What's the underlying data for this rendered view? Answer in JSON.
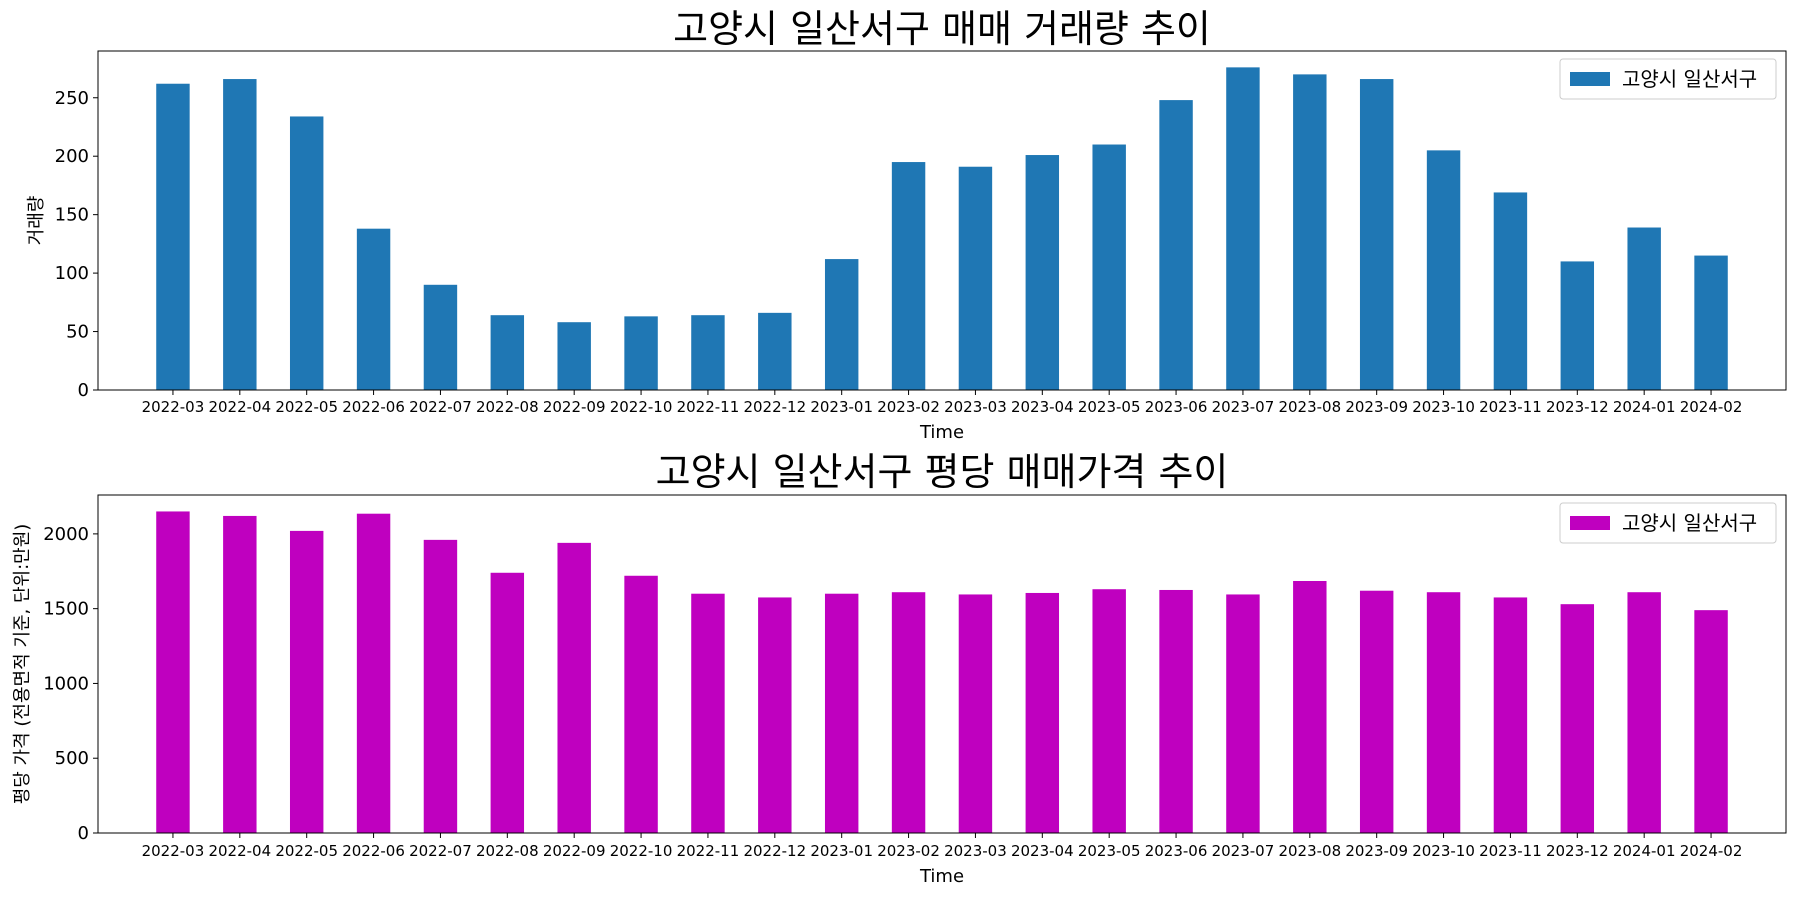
{
  "chart_data": [
    {
      "type": "bar",
      "title": "고양시 일산서구 매매 거래량 추이",
      "xlabel": "Time",
      "ylabel": "거래량",
      "categories": [
        "2022-03",
        "2022-04",
        "2022-05",
        "2022-06",
        "2022-07",
        "2022-08",
        "2022-09",
        "2022-10",
        "2022-11",
        "2022-12",
        "2023-01",
        "2023-02",
        "2023-03",
        "2023-04",
        "2023-05",
        "2023-06",
        "2023-07",
        "2023-08",
        "2023-09",
        "2023-10",
        "2023-11",
        "2023-12",
        "2024-01",
        "2024-02"
      ],
      "series": [
        {
          "name": "고양시 일산서구",
          "color": "#1f77b4",
          "values": [
            262,
            266,
            234,
            138,
            90,
            64,
            58,
            63,
            64,
            66,
            112,
            195,
            191,
            201,
            210,
            248,
            276,
            270,
            266,
            205,
            169,
            110,
            139,
            115
          ]
        }
      ],
      "ylim": [
        0,
        290
      ],
      "yticks": [
        0,
        50,
        100,
        150,
        200,
        250
      ],
      "legend_position": "top-right",
      "grid": false
    },
    {
      "type": "bar",
      "title": "고양시 일산서구 평당 매매가격 추이",
      "xlabel": "Time",
      "ylabel": "평당 가격 (전용면적 기준, 단위:만원)",
      "categories": [
        "2022-03",
        "2022-04",
        "2022-05",
        "2022-06",
        "2022-07",
        "2022-08",
        "2022-09",
        "2022-10",
        "2022-11",
        "2022-12",
        "2023-01",
        "2023-02",
        "2023-03",
        "2023-04",
        "2023-05",
        "2023-06",
        "2023-07",
        "2023-08",
        "2023-09",
        "2023-10",
        "2023-11",
        "2023-12",
        "2024-01",
        "2024-02"
      ],
      "series": [
        {
          "name": "고양시 일산서구",
          "color": "#bf00bf",
          "values": [
            2150,
            2120,
            2020,
            2135,
            1960,
            1740,
            1940,
            1720,
            1600,
            1575,
            1600,
            1610,
            1595,
            1605,
            1630,
            1625,
            1595,
            1685,
            1620,
            1610,
            1575,
            1530,
            1610,
            1490
          ]
        }
      ],
      "ylim": [
        0,
        2260
      ],
      "yticks": [
        0,
        500,
        1000,
        1500,
        2000
      ],
      "legend_position": "top-right",
      "grid": false
    }
  ]
}
